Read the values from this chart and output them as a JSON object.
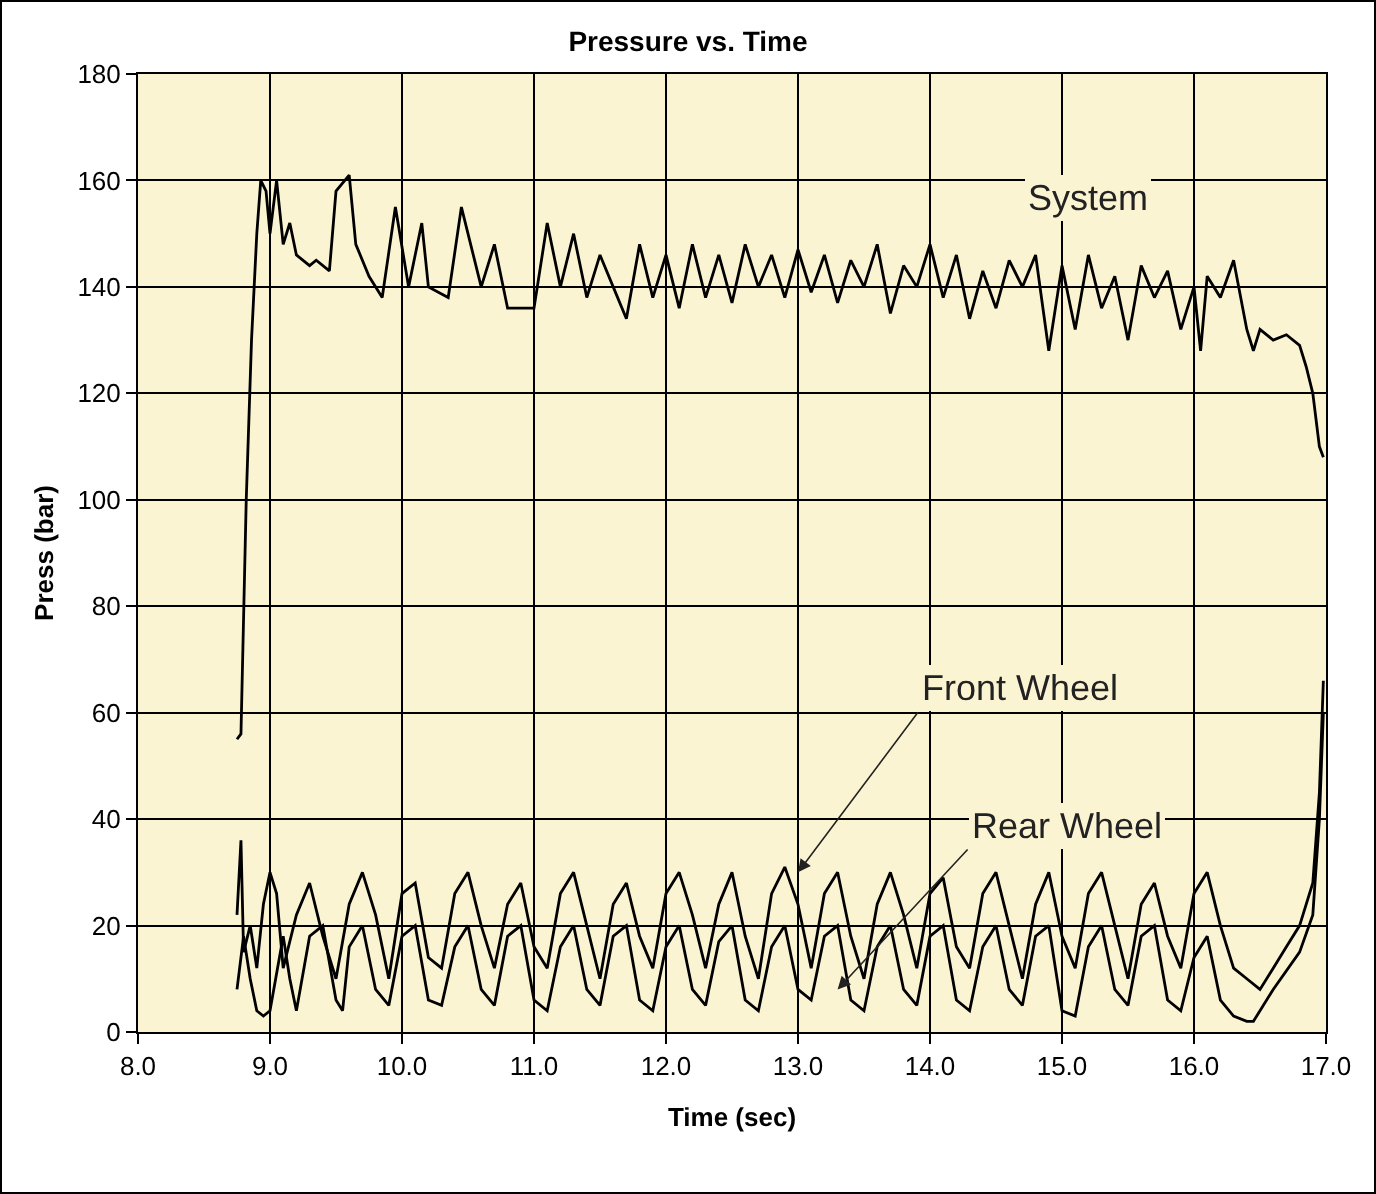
{
  "chart_data": {
    "type": "line",
    "title": "Pressure vs. Time",
    "xlabel": "Time (sec)",
    "ylabel": "Press (bar)",
    "xlim": [
      8,
      17
    ],
    "ylim": [
      0,
      180
    ],
    "xticks": [
      {
        "value": 8,
        "label": "8.0"
      },
      {
        "value": 9,
        "label": "9.0"
      },
      {
        "value": 10,
        "label": "10.0"
      },
      {
        "value": 11,
        "label": "11.0"
      },
      {
        "value": 12,
        "label": "12.0"
      },
      {
        "value": 13,
        "label": "13.0"
      },
      {
        "value": 14,
        "label": "14.0"
      },
      {
        "value": 15,
        "label": "15.0"
      },
      {
        "value": 16,
        "label": "16.0"
      },
      {
        "value": 17,
        "label": "17.0"
      }
    ],
    "yticks": [
      0,
      20,
      40,
      60,
      80,
      100,
      120,
      140,
      160,
      180
    ],
    "grid": true,
    "marker": "none",
    "line_style": "solid",
    "series": [
      {
        "color": "#000000",
        "x": [
          8.75,
          8.78,
          8.82,
          8.86,
          8.9,
          8.93,
          8.97,
          9.0,
          9.05,
          9.1,
          9.15,
          9.2,
          9.3,
          9.35,
          9.45,
          9.5,
          9.6,
          9.65,
          9.75,
          9.85,
          9.95,
          10.05,
          10.15,
          10.2,
          10.35,
          10.45,
          10.6,
          10.7,
          10.8,
          11.0,
          11.1,
          11.2,
          11.3,
          11.4,
          11.5,
          11.6,
          11.7,
          11.8,
          11.9,
          12.0,
          12.1,
          12.2,
          12.3,
          12.4,
          12.5,
          12.6,
          12.7,
          12.8,
          12.9,
          13.0,
          13.1,
          13.2,
          13.3,
          13.4,
          13.5,
          13.6,
          13.7,
          13.8,
          13.9,
          14.0,
          14.1,
          14.2,
          14.3,
          14.4,
          14.5,
          14.6,
          14.7,
          14.8,
          14.9,
          15.0,
          15.1,
          15.2,
          15.3,
          15.4,
          15.5,
          15.6,
          15.7,
          15.8,
          15.9,
          16.0,
          16.05,
          16.1,
          16.2,
          16.3,
          16.4,
          16.45,
          16.5,
          16.6,
          16.7,
          16.8,
          16.85,
          16.9,
          16.95,
          16.98
        ],
        "values": [
          55,
          56,
          100,
          130,
          150,
          160,
          158,
          150,
          160,
          148,
          152,
          146,
          144,
          145,
          143,
          158,
          161,
          148,
          142,
          138,
          155,
          140,
          152,
          140,
          138,
          155,
          140,
          148,
          136,
          136,
          152,
          140,
          150,
          138,
          146,
          140,
          134,
          148,
          138,
          146,
          136,
          148,
          138,
          146,
          137,
          148,
          140,
          146,
          138,
          147,
          139,
          146,
          137,
          145,
          140,
          148,
          135,
          144,
          140,
          148,
          138,
          146,
          134,
          143,
          136,
          145,
          140,
          146,
          128,
          144,
          132,
          146,
          136,
          142,
          130,
          144,
          138,
          143,
          132,
          140,
          128,
          142,
          138,
          145,
          132,
          128,
          132,
          130,
          131,
          129,
          125,
          120,
          110,
          108
        ]
      },
      {
        "color": "#000000",
        "x": [
          8.75,
          8.78,
          8.8,
          8.85,
          8.9,
          8.95,
          9.0,
          9.05,
          9.1,
          9.2,
          9.3,
          9.4,
          9.5,
          9.6,
          9.7,
          9.8,
          9.9,
          10.0,
          10.1,
          10.2,
          10.3,
          10.4,
          10.5,
          10.6,
          10.7,
          10.8,
          10.9,
          11.0,
          11.1,
          11.2,
          11.3,
          11.4,
          11.5,
          11.6,
          11.7,
          11.8,
          11.9,
          12.0,
          12.1,
          12.2,
          12.3,
          12.4,
          12.5,
          12.6,
          12.7,
          12.8,
          12.9,
          13.0,
          13.1,
          13.2,
          13.3,
          13.4,
          13.5,
          13.6,
          13.7,
          13.8,
          13.9,
          14.0,
          14.1,
          14.2,
          14.3,
          14.4,
          14.5,
          14.6,
          14.7,
          14.8,
          14.9,
          15.0,
          15.1,
          15.2,
          15.3,
          15.4,
          15.5,
          15.6,
          15.7,
          15.8,
          15.9,
          16.0,
          16.1,
          16.2,
          16.3,
          16.4,
          16.5,
          16.6,
          16.7,
          16.8,
          16.9,
          16.95,
          16.98
        ],
        "values": [
          22,
          36,
          15,
          20,
          12,
          24,
          30,
          26,
          12,
          22,
          28,
          18,
          10,
          24,
          30,
          22,
          10,
          26,
          28,
          14,
          12,
          26,
          30,
          20,
          12,
          24,
          28,
          16,
          12,
          26,
          30,
          20,
          10,
          24,
          28,
          18,
          12,
          26,
          30,
          22,
          12,
          24,
          30,
          18,
          10,
          26,
          31,
          24,
          12,
          26,
          30,
          18,
          10,
          24,
          30,
          22,
          12,
          26,
          29,
          16,
          12,
          26,
          30,
          20,
          10,
          24,
          30,
          18,
          12,
          26,
          30,
          20,
          10,
          24,
          28,
          18,
          12,
          26,
          30,
          20,
          12,
          10,
          8,
          12,
          16,
          20,
          28,
          45,
          66
        ]
      },
      {
        "color": "#000000",
        "x": [
          8.75,
          8.8,
          8.85,
          8.9,
          8.95,
          9.0,
          9.1,
          9.15,
          9.2,
          9.3,
          9.4,
          9.5,
          9.55,
          9.6,
          9.7,
          9.8,
          9.9,
          10.0,
          10.1,
          10.2,
          10.3,
          10.4,
          10.5,
          10.6,
          10.7,
          10.8,
          10.9,
          11.0,
          11.1,
          11.2,
          11.3,
          11.4,
          11.5,
          11.6,
          11.7,
          11.8,
          11.9,
          12.0,
          12.1,
          12.2,
          12.3,
          12.4,
          12.5,
          12.6,
          12.7,
          12.8,
          12.9,
          13.0,
          13.1,
          13.2,
          13.3,
          13.4,
          13.5,
          13.6,
          13.7,
          13.8,
          13.9,
          14.0,
          14.1,
          14.2,
          14.3,
          14.4,
          14.5,
          14.6,
          14.7,
          14.8,
          14.9,
          15.0,
          15.1,
          15.2,
          15.3,
          15.4,
          15.5,
          15.6,
          15.7,
          15.8,
          15.9,
          16.0,
          16.1,
          16.2,
          16.3,
          16.4,
          16.45,
          16.6,
          16.8,
          16.9,
          16.95,
          16.98
        ],
        "values": [
          8,
          18,
          10,
          4,
          3,
          4,
          18,
          10,
          4,
          18,
          20,
          6,
          4,
          16,
          20,
          8,
          5,
          18,
          20,
          6,
          5,
          16,
          20,
          8,
          5,
          18,
          20,
          6,
          4,
          16,
          20,
          8,
          5,
          18,
          20,
          6,
          4,
          16,
          20,
          8,
          5,
          17,
          20,
          6,
          4,
          16,
          20,
          8,
          6,
          18,
          20,
          6,
          4,
          16,
          20,
          8,
          5,
          18,
          20,
          6,
          4,
          16,
          20,
          8,
          5,
          18,
          20,
          4,
          3,
          16,
          20,
          8,
          5,
          18,
          20,
          6,
          4,
          14,
          18,
          6,
          3,
          2,
          2,
          8,
          15,
          22,
          40,
          60
        ]
      }
    ],
    "annotations": [
      "System",
      {
        "text": "Front Wheel",
        "x": 13.0,
        "y": 30
      },
      {
        "text": "Rear Wheel",
        "x": 13.3,
        "y": 8
      }
    ]
  }
}
